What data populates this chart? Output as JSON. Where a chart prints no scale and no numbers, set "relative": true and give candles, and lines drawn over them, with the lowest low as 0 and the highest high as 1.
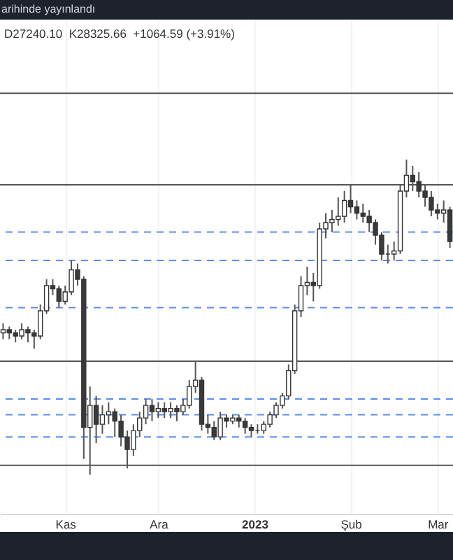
{
  "chart_data": {
    "type": "candlestick",
    "subtitle": "arihinde yayınlandı",
    "annotations": [
      "D27240.10  K28325.66  +1064.59 (+3.91%)"
    ],
    "relative": true,
    "grid": "x",
    "xlim": [
      "2022-10-11",
      "2023-03-06"
    ],
    "xticks": [
      {
        "value": "2022-11-01",
        "label": "Kas"
      },
      {
        "value": "2022-12-01",
        "label": "Ara"
      },
      {
        "value": "2023-01-01",
        "label": "2023"
      },
      {
        "value": "2023-02-01",
        "label": "Şub"
      },
      {
        "value": "2023-03-01",
        "label": "Mar"
      }
    ],
    "x": [
      "2022-10-12",
      "2022-10-14",
      "2022-10-16",
      "2022-10-18",
      "2022-10-20",
      "2022-10-22",
      "2022-10-24",
      "2022-10-26",
      "2022-10-28",
      "2022-10-30",
      "2022-11-01",
      "2022-11-03",
      "2022-11-05",
      "2022-11-07",
      "2022-11-09",
      "2022-11-11",
      "2022-11-13",
      "2022-11-15",
      "2022-11-17",
      "2022-11-19",
      "2022-11-21",
      "2022-11-23",
      "2022-11-25",
      "2022-11-27",
      "2022-11-29",
      "2022-12-01",
      "2022-12-03",
      "2022-12-05",
      "2022-12-07",
      "2022-12-09",
      "2022-12-11",
      "2022-12-13",
      "2022-12-15",
      "2022-12-17",
      "2022-12-19",
      "2022-12-21",
      "2022-12-23",
      "2022-12-25",
      "2022-12-27",
      "2022-12-29",
      "2022-12-31",
      "2023-01-02",
      "2023-01-04",
      "2023-01-06",
      "2023-01-08",
      "2023-01-10",
      "2023-01-12",
      "2023-01-14",
      "2023-01-16",
      "2023-01-18",
      "2023-01-20",
      "2023-01-22",
      "2023-01-24",
      "2023-01-26",
      "2023-01-28",
      "2023-01-30",
      "2023-02-01",
      "2023-02-03",
      "2023-02-05",
      "2023-02-07",
      "2023-02-09",
      "2023-02-11",
      "2023-02-13",
      "2023-02-15",
      "2023-02-17",
      "2023-02-19",
      "2023-02-21",
      "2023-02-23",
      "2023-02-25",
      "2023-02-27",
      "2023-03-01",
      "2023-03-03",
      "2023-03-05"
    ],
    "ohlc": [
      [
        0.45,
        0.48,
        0.43,
        0.46
      ],
      [
        0.46,
        0.47,
        0.43,
        0.45
      ],
      [
        0.45,
        0.46,
        0.42,
        0.44
      ],
      [
        0.44,
        0.48,
        0.43,
        0.46
      ],
      [
        0.46,
        0.47,
        0.42,
        0.45
      ],
      [
        0.45,
        0.46,
        0.4,
        0.44
      ],
      [
        0.44,
        0.54,
        0.43,
        0.52
      ],
      [
        0.52,
        0.62,
        0.51,
        0.6
      ],
      [
        0.6,
        0.62,
        0.57,
        0.59
      ],
      [
        0.59,
        0.6,
        0.53,
        0.55
      ],
      [
        0.55,
        0.6,
        0.54,
        0.58
      ],
      [
        0.58,
        0.68,
        0.57,
        0.65
      ],
      [
        0.65,
        0.67,
        0.6,
        0.62
      ],
      [
        0.62,
        0.63,
        0.05,
        0.15
      ],
      [
        0.15,
        0.28,
        0.0,
        0.22
      ],
      [
        0.22,
        0.25,
        0.1,
        0.16
      ],
      [
        0.16,
        0.22,
        0.13,
        0.19
      ],
      [
        0.19,
        0.23,
        0.16,
        0.2
      ],
      [
        0.2,
        0.21,
        0.12,
        0.17
      ],
      [
        0.17,
        0.19,
        0.09,
        0.12
      ],
      [
        0.12,
        0.14,
        0.02,
        0.08
      ],
      [
        0.08,
        0.16,
        0.06,
        0.14
      ],
      [
        0.14,
        0.2,
        0.12,
        0.18
      ],
      [
        0.18,
        0.24,
        0.16,
        0.22
      ],
      [
        0.22,
        0.24,
        0.17,
        0.2
      ],
      [
        0.2,
        0.23,
        0.18,
        0.21
      ],
      [
        0.21,
        0.23,
        0.18,
        0.2
      ],
      [
        0.2,
        0.23,
        0.18,
        0.21
      ],
      [
        0.21,
        0.22,
        0.17,
        0.2
      ],
      [
        0.2,
        0.24,
        0.19,
        0.22
      ],
      [
        0.22,
        0.3,
        0.21,
        0.28
      ],
      [
        0.28,
        0.36,
        0.26,
        0.3
      ],
      [
        0.3,
        0.31,
        0.14,
        0.16
      ],
      [
        0.16,
        0.19,
        0.13,
        0.15
      ],
      [
        0.15,
        0.17,
        0.11,
        0.12
      ],
      [
        0.12,
        0.2,
        0.11,
        0.18
      ],
      [
        0.18,
        0.19,
        0.15,
        0.17
      ],
      [
        0.17,
        0.19,
        0.16,
        0.18
      ],
      [
        0.18,
        0.19,
        0.15,
        0.17
      ],
      [
        0.17,
        0.18,
        0.13,
        0.15
      ],
      [
        0.15,
        0.16,
        0.12,
        0.14
      ],
      [
        0.14,
        0.16,
        0.13,
        0.14
      ],
      [
        0.14,
        0.17,
        0.13,
        0.16
      ],
      [
        0.16,
        0.2,
        0.15,
        0.19
      ],
      [
        0.19,
        0.23,
        0.18,
        0.22
      ],
      [
        0.22,
        0.26,
        0.21,
        0.25
      ],
      [
        0.25,
        0.35,
        0.24,
        0.33
      ],
      [
        0.33,
        0.54,
        0.32,
        0.52
      ],
      [
        0.52,
        0.63,
        0.5,
        0.6
      ],
      [
        0.6,
        0.66,
        0.57,
        0.61
      ],
      [
        0.61,
        0.64,
        0.55,
        0.6
      ],
      [
        0.6,
        0.8,
        0.59,
        0.78
      ],
      [
        0.78,
        0.83,
        0.75,
        0.8
      ],
      [
        0.8,
        0.84,
        0.77,
        0.81
      ],
      [
        0.81,
        0.88,
        0.79,
        0.82
      ],
      [
        0.82,
        0.9,
        0.8,
        0.87
      ],
      [
        0.87,
        0.92,
        0.83,
        0.85
      ],
      [
        0.85,
        0.87,
        0.81,
        0.83
      ],
      [
        0.83,
        0.86,
        0.8,
        0.82
      ],
      [
        0.82,
        0.84,
        0.77,
        0.8
      ],
      [
        0.8,
        0.81,
        0.73,
        0.76
      ],
      [
        0.76,
        0.77,
        0.68,
        0.7
      ],
      [
        0.7,
        0.73,
        0.67,
        0.7
      ],
      [
        0.7,
        0.74,
        0.68,
        0.71
      ],
      [
        0.71,
        0.92,
        0.7,
        0.9
      ],
      [
        0.9,
        1.0,
        0.88,
        0.95
      ],
      [
        0.95,
        0.98,
        0.9,
        0.93
      ],
      [
        0.93,
        0.96,
        0.88,
        0.9
      ],
      [
        0.9,
        0.92,
        0.85,
        0.88
      ],
      [
        0.88,
        0.9,
        0.82,
        0.84
      ],
      [
        0.84,
        0.86,
        0.81,
        0.83
      ],
      [
        0.83,
        0.87,
        0.8,
        0.84
      ],
      [
        0.84,
        0.85,
        0.72,
        0.74
      ]
    ],
    "ref_lines": [
      {
        "axis": "y",
        "value": 1.21,
        "color": "#555555",
        "line_style": "solid"
      },
      {
        "axis": "y",
        "value": 0.92,
        "color": "#555555",
        "line_style": "solid"
      },
      {
        "axis": "y",
        "value": 0.77,
        "color": "#5b8def",
        "line_style": "dashed"
      },
      {
        "axis": "y",
        "value": 0.68,
        "color": "#5b8def",
        "line_style": "dashed"
      },
      {
        "axis": "y",
        "value": 0.53,
        "color": "#5b8def",
        "line_style": "dashed"
      },
      {
        "axis": "y",
        "value": 0.36,
        "color": "#555555",
        "line_style": "solid"
      },
      {
        "axis": "y",
        "value": 0.24,
        "color": "#5b8def",
        "line_style": "dashed"
      },
      {
        "axis": "y",
        "value": 0.19,
        "color": "#5b8def",
        "line_style": "dashed"
      },
      {
        "axis": "y",
        "value": 0.12,
        "color": "#5b8def",
        "line_style": "dashed"
      },
      {
        "axis": "y",
        "value": 0.03,
        "color": "#555555",
        "line_style": "solid"
      }
    ]
  }
}
